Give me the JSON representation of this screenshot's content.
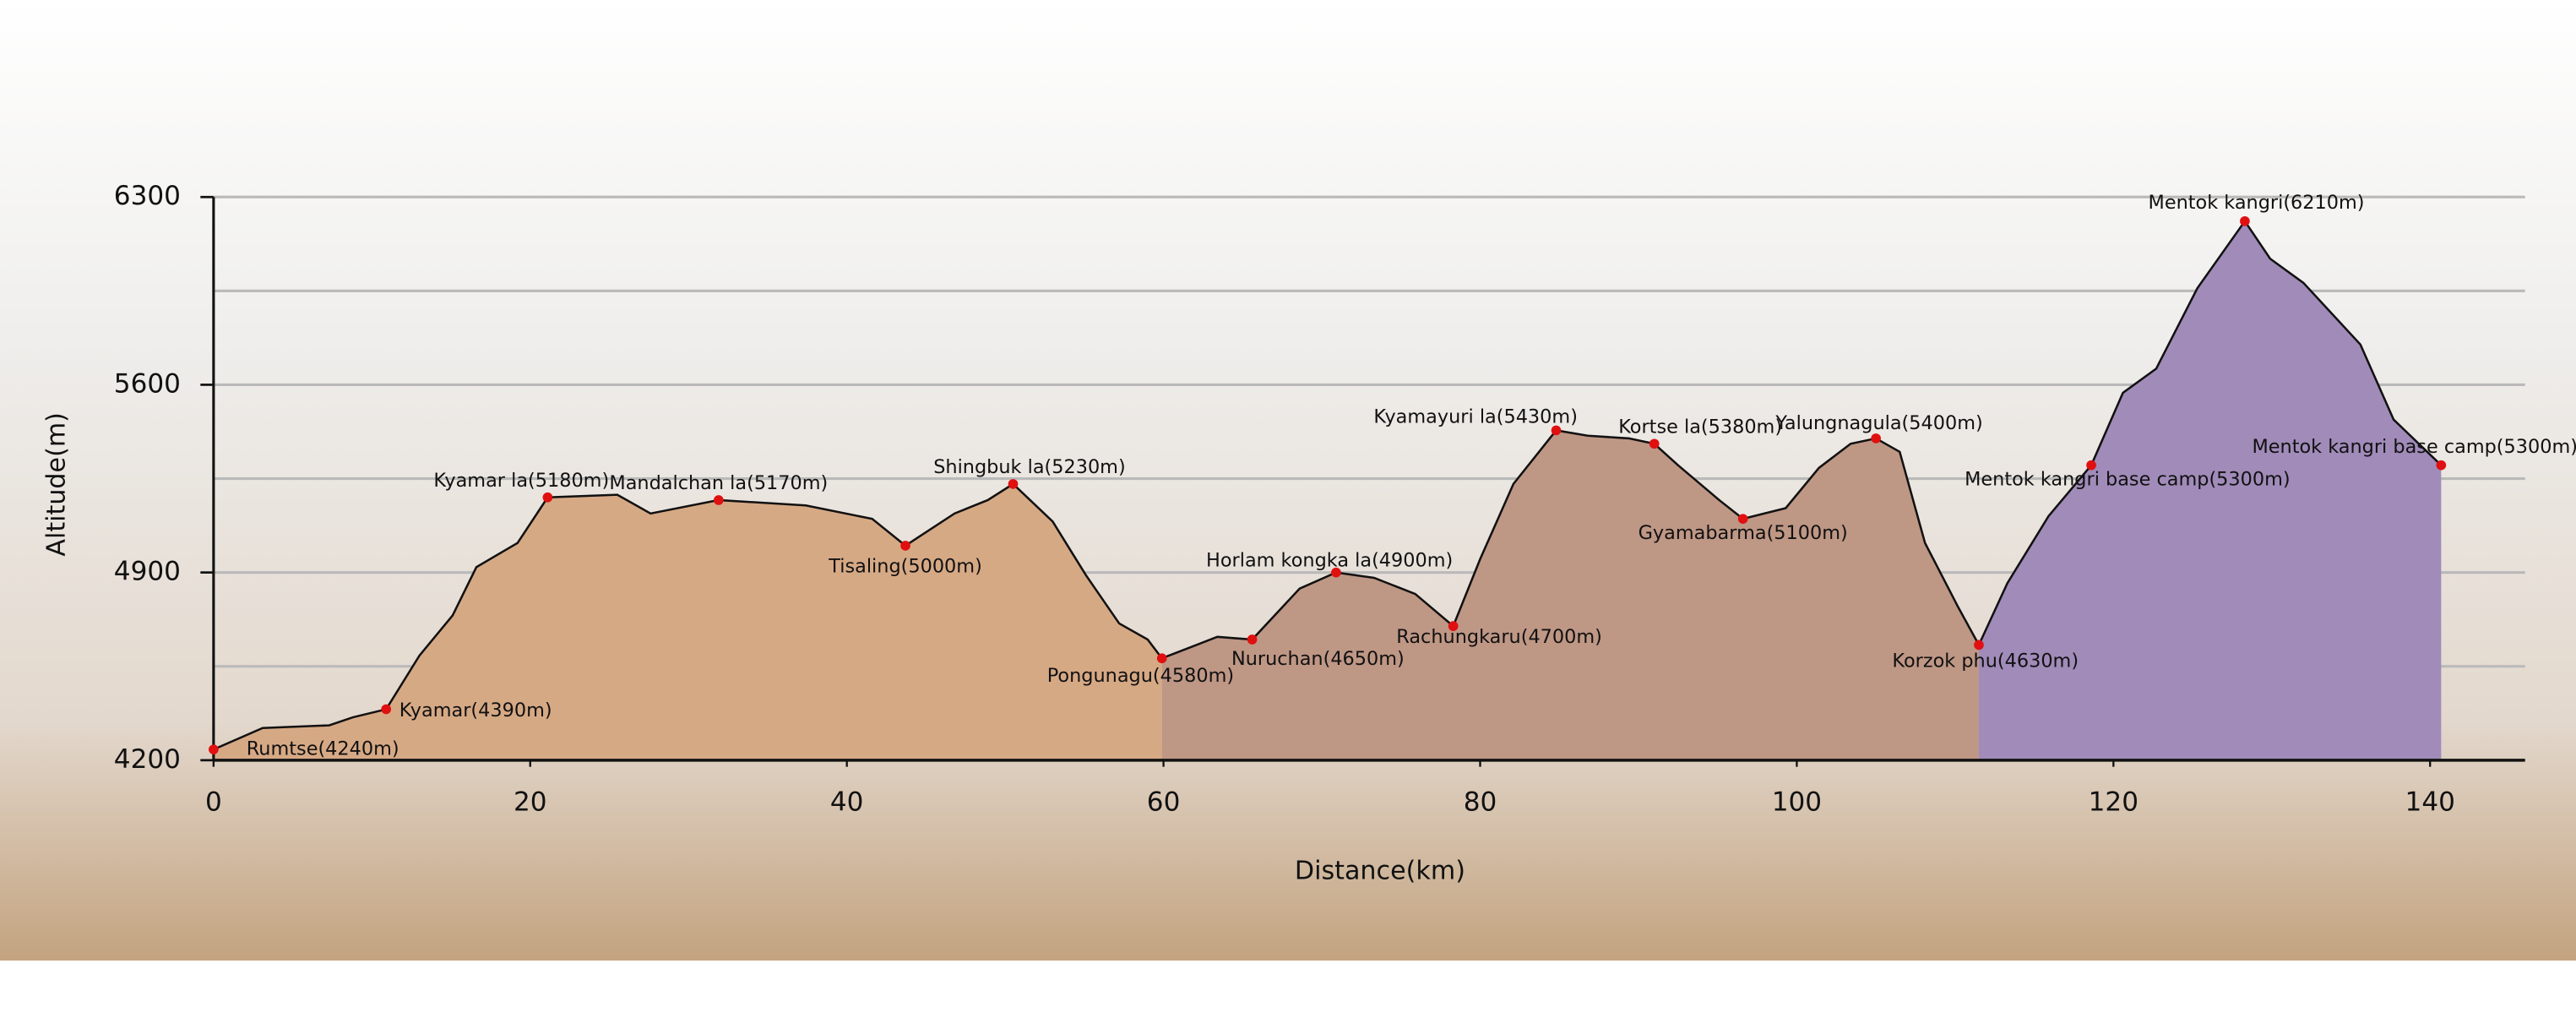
{
  "chart_data": {
    "type": "area",
    "xlabel": "Distance(km)",
    "ylabel": "Altitude(m)",
    "xlim": [
      0,
      146
    ],
    "ylim": [
      4200,
      6300
    ],
    "xticks": [
      0,
      20,
      40,
      60,
      80,
      100,
      120,
      140
    ],
    "yticks": [
      4200,
      4900,
      5600,
      6300
    ],
    "ygrid": [
      4550,
      4900,
      5250,
      5600,
      5950,
      6300
    ],
    "line_color": "#111111",
    "point_color": "#e01010",
    "series": [
      {
        "color": "#d6a985",
        "x": [
          0,
          3.1,
          7.3,
          8.8,
          10.9,
          13.0,
          15.1,
          16.6,
          19.2,
          21.1,
          25.5,
          27.6,
          31.9,
          37.4,
          41.6,
          43.7,
          46.8,
          48.9,
          50.5,
          53.0,
          55.1,
          57.2,
          59.0,
          59.9
        ],
        "values": [
          4240,
          4320,
          4330,
          4360,
          4390,
          4590,
          4740,
          4920,
          5010,
          5180,
          5190,
          5120,
          5170,
          5150,
          5100,
          5000,
          5120,
          5170,
          5230,
          5090,
          4890,
          4710,
          4650,
          4580
        ]
      },
      {
        "color": "#bf9785",
        "x": [
          59.9,
          63.4,
          65.6,
          68.6,
          70.9,
          73.3,
          75.9,
          78.3,
          80.0,
          82.1,
          84.8,
          86.8,
          89.4,
          91.0,
          92.5,
          95.1,
          96.6,
          99.3,
          101.4,
          103.4,
          105.0,
          106.5,
          108.1,
          110.2,
          111.5
        ],
        "values": [
          4580,
          4660,
          4650,
          4840,
          4900,
          4880,
          4820,
          4700,
          4950,
          5230,
          5430,
          5410,
          5400,
          5380,
          5300,
          5170,
          5100,
          5140,
          5290,
          5380,
          5400,
          5350,
          5010,
          4770,
          4630
        ]
      },
      {
        "color": "#a08bb9",
        "x": [
          111.5,
          113.3,
          115.9,
          118.6,
          120.6,
          122.7,
          125.3,
          128.3,
          129.9,
          132.0,
          135.6,
          137.7,
          140.7
        ],
        "values": [
          4630,
          4860,
          5110,
          5300,
          5570,
          5660,
          5960,
          6210,
          6070,
          5980,
          5750,
          5470,
          5300
        ]
      }
    ],
    "points": [
      {
        "label": "Rumtse(4240m)",
        "x": 0,
        "y": 4240
      },
      {
        "label": "Kyamar(4390m)",
        "x": 10.9,
        "y": 4390
      },
      {
        "label": "Kyamar la(5180m)",
        "x": 21.1,
        "y": 5180
      },
      {
        "label": "Mandalchan la(5170m)",
        "x": 31.9,
        "y": 5170
      },
      {
        "label": "Tisaling(5000m)",
        "x": 43.7,
        "y": 5000
      },
      {
        "label": "Shingbuk la(5230m)",
        "x": 50.5,
        "y": 5230
      },
      {
        "label": "Pongunagu(4580m)",
        "x": 59.9,
        "y": 4580
      },
      {
        "label": "Nuruchan(4650m)",
        "x": 65.6,
        "y": 4650
      },
      {
        "label": "Horlam kongka la(4900m)",
        "x": 70.9,
        "y": 4900
      },
      {
        "label": "Rachungkaru(4700m)",
        "x": 78.3,
        "y": 4700
      },
      {
        "label": "Kyamayuri la(5430m)",
        "x": 84.8,
        "y": 5430
      },
      {
        "label": "Kortse la(5380m)",
        "x": 91.0,
        "y": 5380
      },
      {
        "label": "Gyamabarma(5100m)",
        "x": 96.6,
        "y": 5100
      },
      {
        "label": "Yalungnagula(5400m)",
        "x": 105.0,
        "y": 5400
      },
      {
        "label": "Korzok phu(4630m)",
        "x": 111.5,
        "y": 4630
      },
      {
        "label": "Mentok kangri base camp(5300m)",
        "x": 118.6,
        "y": 5300
      },
      {
        "label": "Mentok kangri(6210m)",
        "x": 128.3,
        "y": 6210
      },
      {
        "label": "Mentok kangri base camp(5300m)",
        "x": 140.7,
        "y": 5300
      }
    ]
  }
}
